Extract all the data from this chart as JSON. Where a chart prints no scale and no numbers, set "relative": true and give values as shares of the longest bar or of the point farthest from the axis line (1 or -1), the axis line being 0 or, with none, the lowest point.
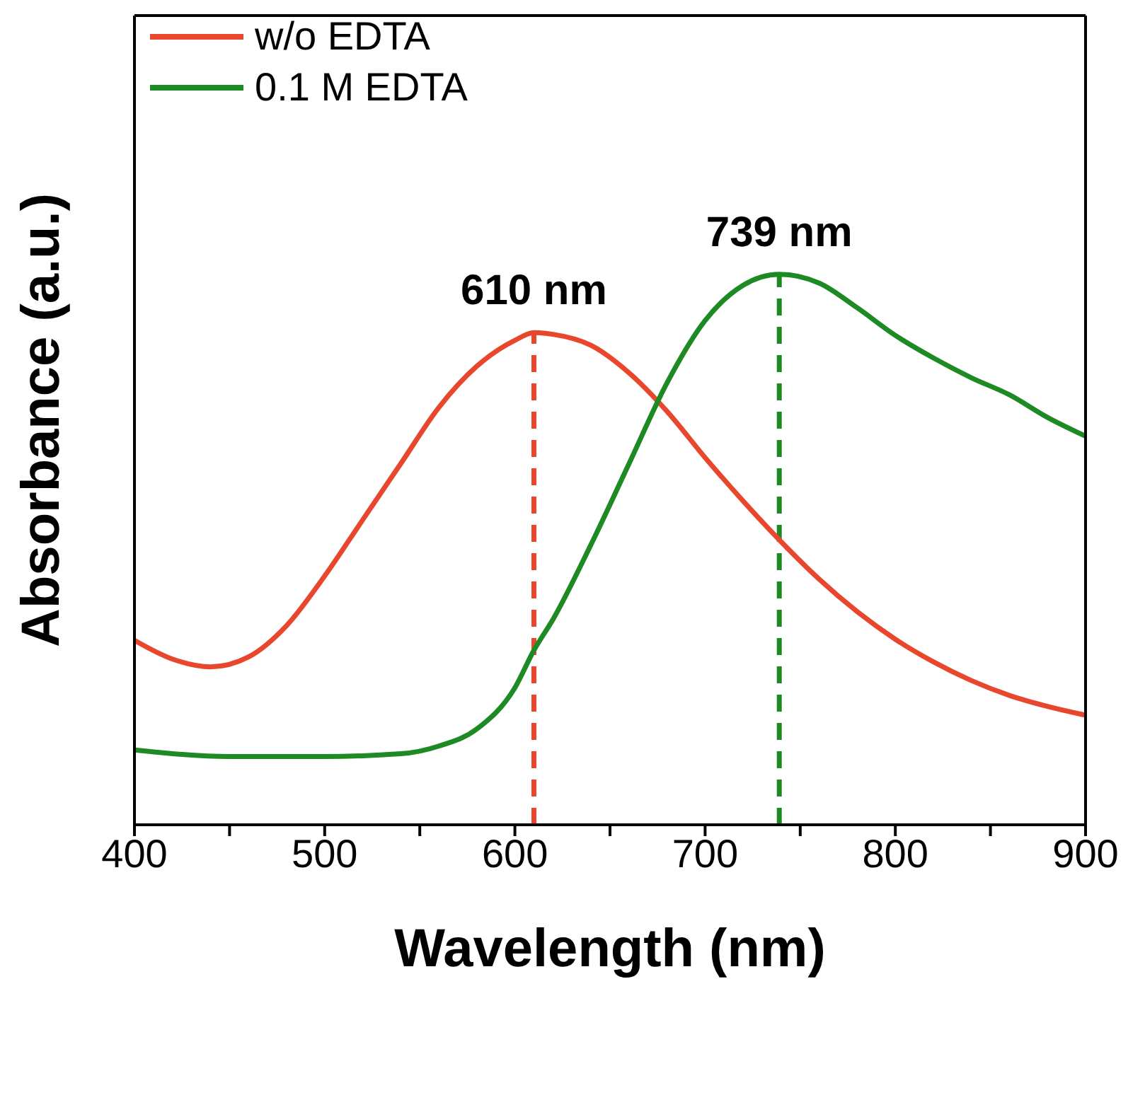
{
  "chart_data": {
    "type": "line",
    "xlabel": "Wavelength (nm)",
    "ylabel": "Absorbance (a.u.)",
    "relative": true,
    "xlim": [
      400,
      900
    ],
    "xticks": [
      400,
      {
        "value": 450,
        "label": null
      },
      500,
      {
        "value": 550,
        "label": null
      },
      600,
      {
        "value": 650,
        "label": null
      },
      700,
      {
        "value": 750,
        "label": null
      },
      800,
      {
        "value": 850,
        "label": null
      },
      900
    ],
    "legend": "top left",
    "marker": "none",
    "line_style": "solid",
    "series": [
      {
        "name": "w/o EDTA",
        "color": "#e8472e",
        "x": [
          400,
          420,
          440,
          460,
          480,
          500,
          520,
          540,
          560,
          580,
          600,
          610,
          620,
          640,
          660,
          680,
          700,
          720,
          740,
          760,
          780,
          800,
          820,
          840,
          860,
          880,
          900
        ],
        "values": [
          0.335,
          0.301,
          0.287,
          0.305,
          0.362,
          0.452,
          0.554,
          0.656,
          0.758,
          0.833,
          0.88,
          0.894,
          0.891,
          0.871,
          0.821,
          0.751,
          0.667,
          0.588,
          0.514,
          0.446,
          0.387,
          0.337,
          0.296,
          0.262,
          0.235,
          0.215,
          0.199
        ]
      },
      {
        "name": "0.1 M EDTA",
        "color": "#1e8a24",
        "x": [
          400,
          450,
          500,
          540,
          560,
          580,
          600,
          610,
          620,
          640,
          660,
          680,
          700,
          720,
          739,
          760,
          780,
          800,
          820,
          840,
          860,
          880,
          900
        ],
        "values": [
          0.136,
          0.124,
          0.124,
          0.129,
          0.143,
          0.174,
          0.249,
          0.317,
          0.373,
          0.509,
          0.656,
          0.803,
          0.916,
          0.98,
          1,
          0.984,
          0.939,
          0.889,
          0.848,
          0.812,
          0.781,
          0.74,
          0.706
        ]
      }
    ],
    "ref_lines": [
      {
        "axis": "x",
        "value": 610,
        "label": "610 nm",
        "color": "#e8472e",
        "line_style": "dashed"
      },
      {
        "axis": "x",
        "value": 739,
        "label": "739 nm",
        "color": "#1e8a24",
        "line_style": "dashed"
      }
    ]
  }
}
